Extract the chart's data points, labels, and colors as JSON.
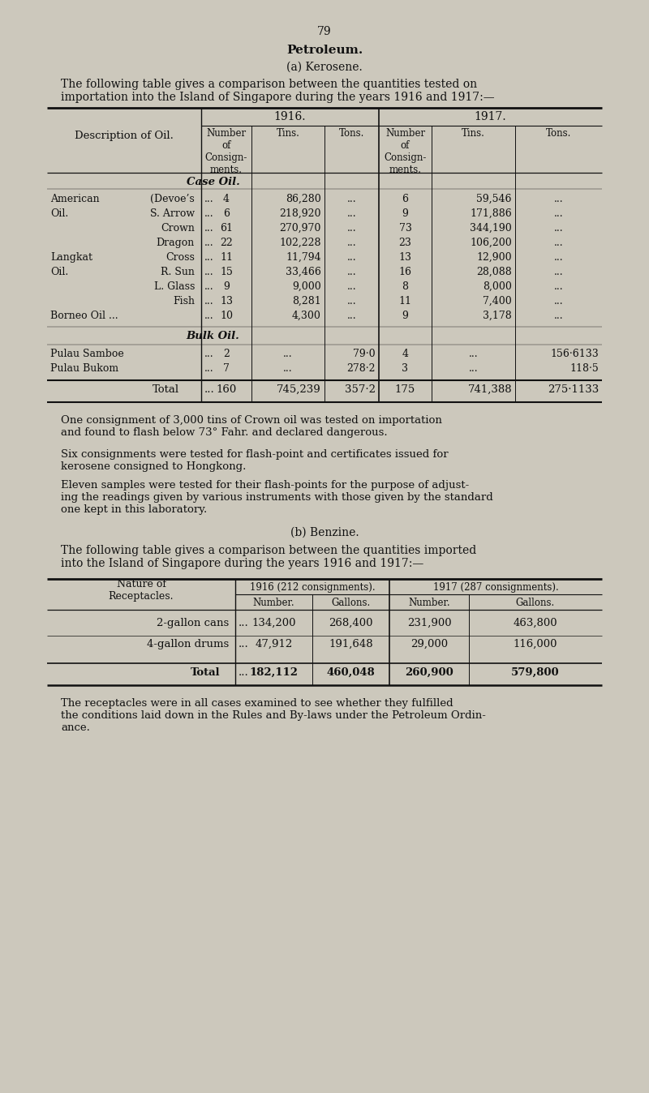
{
  "page_number": "79",
  "bg_color": "#ccc8bc",
  "title": "Petroleum.",
  "subtitle_a": "(a) Kerosene.",
  "intro_a": "The following table gives a comparison between the quantities tested on\nimportation into the Island of Singapore during the years 1916 and 1917:—",
  "kerosene_header_col0": "Description of Oil.",
  "kerosene_header_1916": "1916.",
  "kerosene_header_1917": "1917.",
  "case_oil_label": "Case Oil.",
  "kerosene_rows": [
    [
      "American",
      "(Devoe’s",
      "...",
      "4",
      "86,280",
      "...",
      "6",
      "59,546",
      "..."
    ],
    [
      "Oil.",
      "S. Arrow",
      "...",
      "6",
      "218,920",
      "...",
      "9",
      "171,886",
      "..."
    ],
    [
      "",
      "Crown",
      "...",
      "61",
      "270,970",
      "...",
      "73",
      "344,190",
      "..."
    ],
    [
      "",
      "Dragon",
      "...",
      "22",
      "102,228",
      "...",
      "23",
      "106,200",
      "..."
    ],
    [
      "Langkat",
      "Cross",
      "...",
      "11",
      "11,794",
      "...",
      "13",
      "12,900",
      "..."
    ],
    [
      "Oil.",
      "R. Sun",
      "...",
      "15",
      "33,466",
      "...",
      "16",
      "28,088",
      "..."
    ],
    [
      "",
      "L. Glass",
      "...",
      "9",
      "9,000",
      "...",
      "8",
      "8,000",
      "..."
    ],
    [
      "",
      "Fish",
      "...",
      "13",
      "8,281",
      "...",
      "11",
      "7,400",
      "..."
    ],
    [
      "Borneo Oil ...",
      "",
      "...",
      "10",
      "4,300",
      "...",
      "9",
      "3,178",
      "..."
    ]
  ],
  "kerosene_row_braces": [
    true,
    true,
    false,
    false,
    true,
    true,
    false,
    false,
    false
  ],
  "bulk_oil_label": "Bulk Oil.",
  "bulk_rows": [
    [
      "Pulau Samboe",
      "...",
      "2",
      "...",
      "79·0",
      "4",
      "...",
      "156·6133"
    ],
    [
      "Pulau Bukom",
      "...",
      "7",
      "...",
      "278·2",
      "3",
      "...",
      "118·5"
    ]
  ],
  "total_row": [
    "Total",
    "...",
    "160",
    "745,239",
    "357·2",
    "175",
    "741,388",
    "275·1133"
  ],
  "note1": "One consignment of 3,000 tins of Crown oil was tested on importation\nand found to flash below 73° Fahr. and declared dangerous.",
  "note2": "Six consignments were tested for flash-point and certificates issued for\nkerosene consigned to Hongkong.",
  "note3": "Eleven samples were tested for their flash-points for the purpose of adjust-\ning the readings given by various instruments with those given by the standard\none kept in this laboratory.",
  "subtitle_b": "(b) Benzine.",
  "intro_b": "The following table gives a comparison between the quantities imported\ninto the Island of Singapore during the years 1916 and 1917:—",
  "benzine_col0": "Nature of\nReceptacles.",
  "benzine_header_1916": "1916 (212 consignments).",
  "benzine_header_1917": "1917 (287 consignments).",
  "benzine_subheader": [
    "Number.",
    "Gallons.",
    "Number.",
    "Gallons."
  ],
  "benzine_rows": [
    [
      "2-gallon cans",
      "...",
      "134,200",
      "268,400",
      "231,900",
      "463,800"
    ],
    [
      "4-gallon drums",
      "...",
      "47,912",
      "191,648",
      "29,000",
      "116,000"
    ]
  ],
  "benzine_total": [
    "Total",
    "...",
    "182,112",
    "460,048",
    "260,900",
    "579,800"
  ],
  "closing_text": "The receptacles were in all cases examined to see whether they fulfilled\nthe conditions laid down in the Rules and By-laws under the Petroleum Ordin-\nance."
}
